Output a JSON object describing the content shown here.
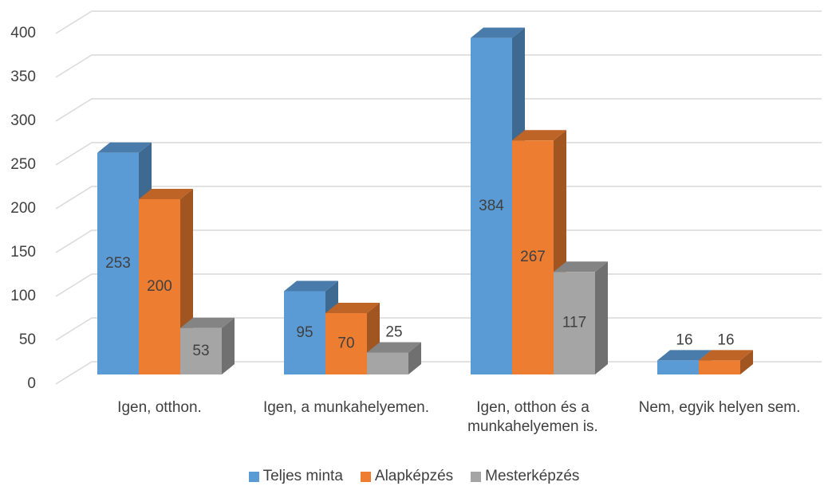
{
  "chart_data": {
    "type": "bar3d",
    "categories": [
      "Igen, otthon.",
      "Igen, a munkahelyemen.",
      "Igen, otthon és a munkahelyemen is.",
      "Nem, egyik helyen sem."
    ],
    "series": [
      {
        "name": "Teljes minta",
        "color": "#5b9bd5",
        "values": [
          253,
          95,
          384,
          16
        ]
      },
      {
        "name": "Alapképzés",
        "color": "#ed7d31",
        "values": [
          200,
          70,
          267,
          16
        ]
      },
      {
        "name": "Mesterképzés",
        "color": "#a5a5a5",
        "values": [
          53,
          25,
          117,
          null
        ]
      }
    ],
    "ylim": [
      0,
      400
    ],
    "yticks": [
      0,
      50,
      100,
      150,
      200,
      250,
      300,
      350,
      400
    ],
    "grid": true,
    "legend": "bottom"
  }
}
